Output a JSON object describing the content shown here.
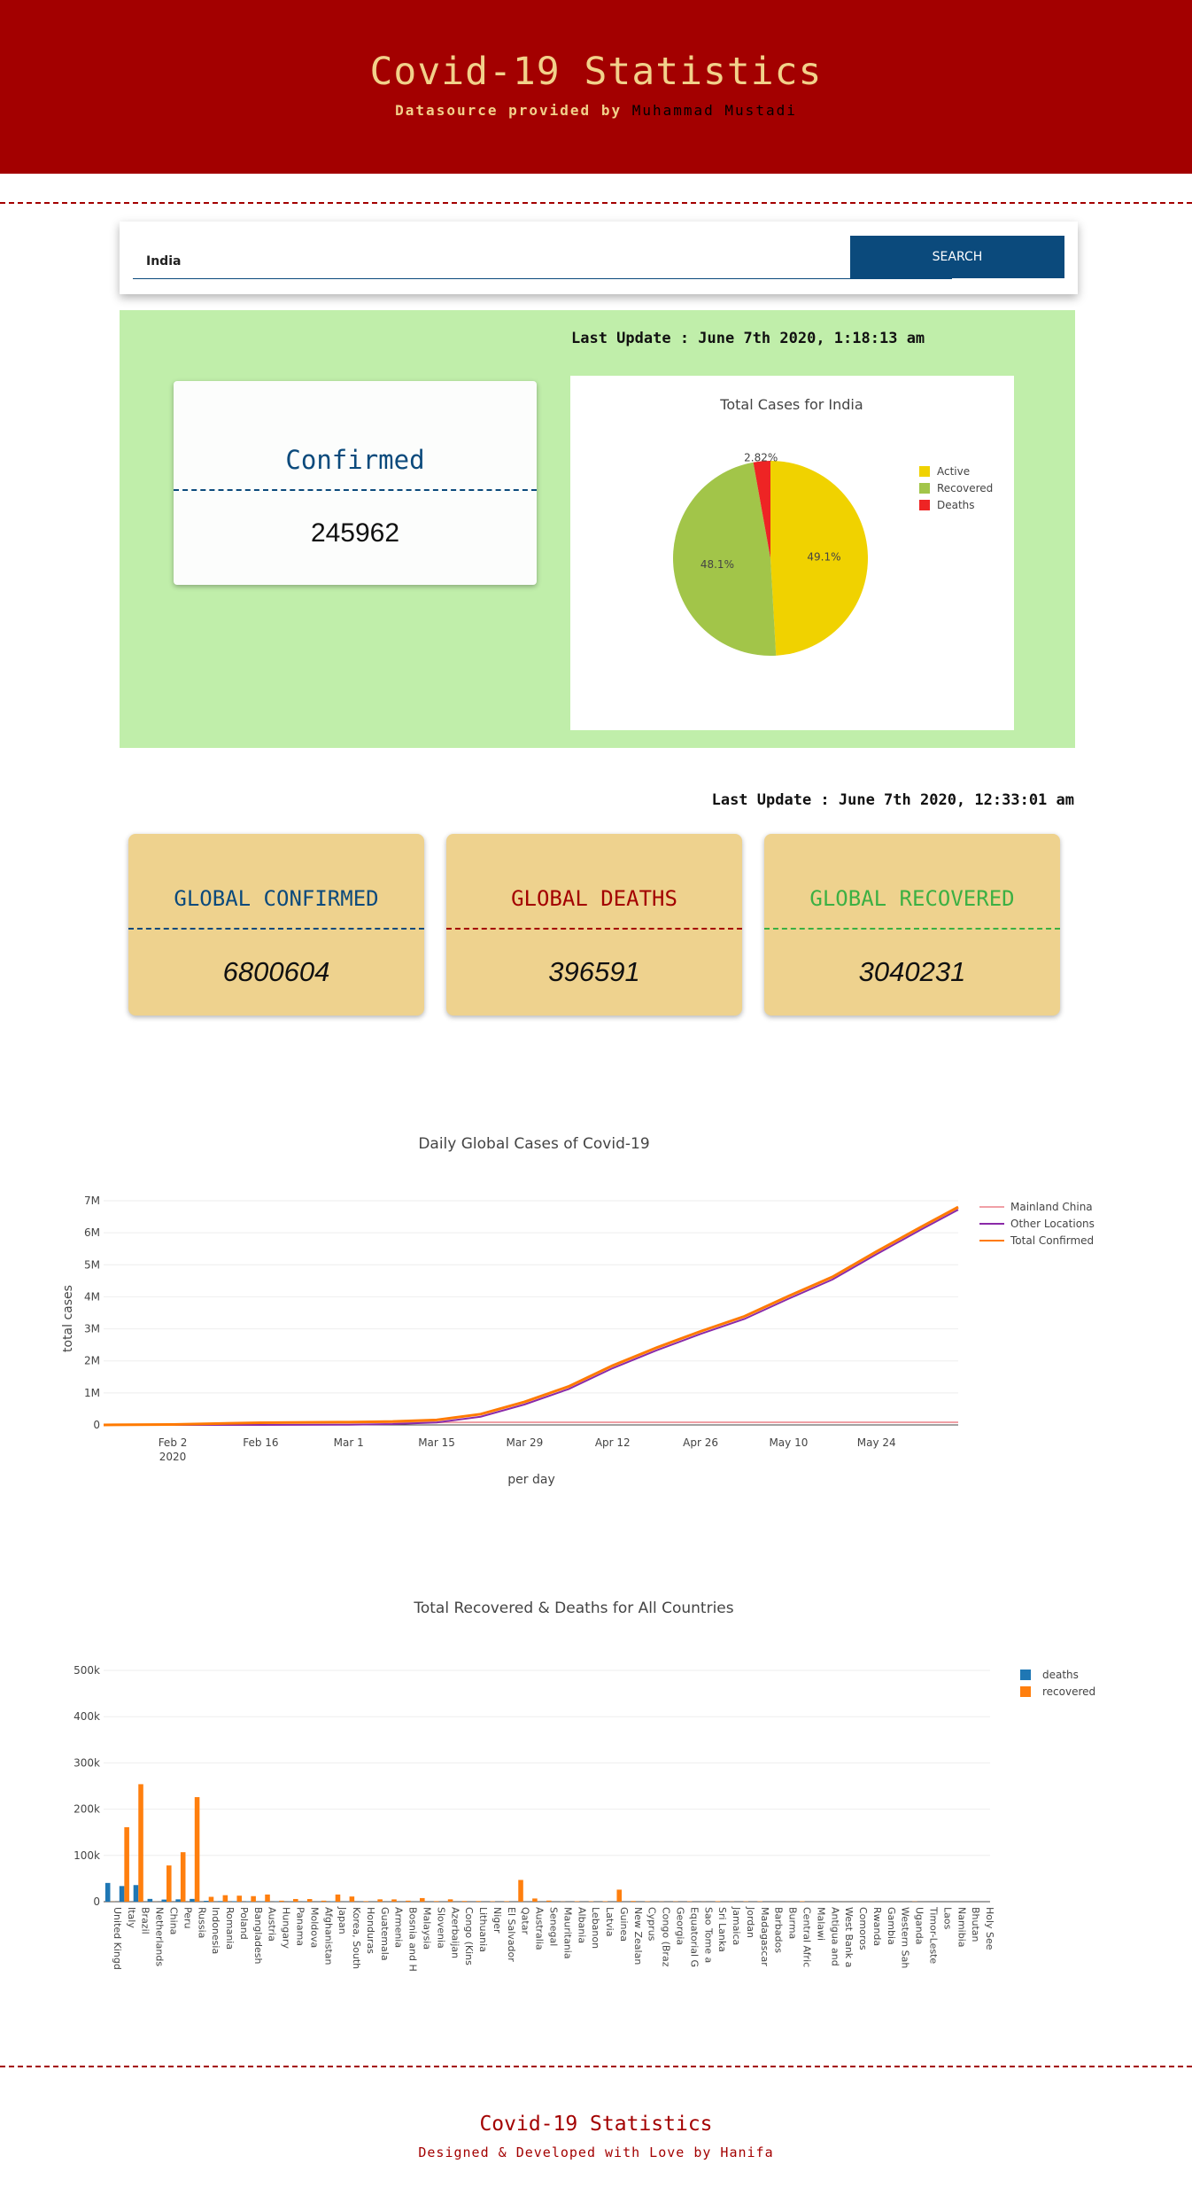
{
  "header": {
    "title": "Covid-19 Statistics",
    "subtitle_prefix": "Datasource provided by ",
    "subtitle_author": "Muhammad Mustadi"
  },
  "search": {
    "value": "India",
    "button_label": "SEARCH"
  },
  "country": {
    "last_update": "Last Update : June 7th 2020, 1:18:13 am",
    "confirmed_label": "Confirmed",
    "confirmed_value": "245962"
  },
  "global": {
    "last_update": "Last Update : June 7th 2020, 12:33:01 am",
    "cards": [
      {
        "label": "GLOBAL CONFIRMED",
        "value": "6800604",
        "color": "#0b4a7c"
      },
      {
        "label": "GLOBAL DEATHS",
        "value": "396591",
        "color": "#a30000"
      },
      {
        "label": "GLOBAL RECOVERED",
        "value": "3040231",
        "color": "#3cb043"
      }
    ]
  },
  "footer": {
    "title": "Covid-19 Statistics",
    "subtitle": "Designed & Developed with Love by Hanifa"
  },
  "chart_data": [
    {
      "type": "pie",
      "title": "Total Cases for India",
      "legend_position": "right",
      "labels": [
        "Active",
        "Recovered",
        "Deaths"
      ],
      "values": [
        49.1,
        48.1,
        2.82
      ],
      "value_labels": [
        "49.1%",
        "48.1%",
        "2.82%"
      ],
      "colors": [
        "#f0d200",
        "#a2c549",
        "#ee2424"
      ]
    },
    {
      "type": "line",
      "title": "Daily Global Cases of Covid-19",
      "xlabel": "per day",
      "ylabel": "total cases",
      "legend_position": "top-right",
      "x_ticks": [
        "Feb 2\n2020",
        "Feb 16",
        "Mar 1",
        "Mar 15",
        "Mar 29",
        "Apr 12",
        "Apr 26",
        "May 10",
        "May 24"
      ],
      "x_tick_dates": [
        "2020-02-02",
        "2020-02-16",
        "2020-03-01",
        "2020-03-15",
        "2020-03-29",
        "2020-04-12",
        "2020-04-26",
        "2020-05-10",
        "2020-05-24"
      ],
      "y_ticks": [
        "0",
        "1M",
        "2M",
        "3M",
        "4M",
        "5M",
        "6M",
        "7M"
      ],
      "ylim": [
        0,
        7000000
      ],
      "xlim": [
        "2020-01-22",
        "2020-06-06"
      ],
      "grid": true,
      "dates": [
        "2020-01-22",
        "2020-02-02",
        "2020-02-16",
        "2020-03-01",
        "2020-03-08",
        "2020-03-15",
        "2020-03-22",
        "2020-03-29",
        "2020-04-05",
        "2020-04-12",
        "2020-04-19",
        "2020-04-26",
        "2020-05-03",
        "2020-05-10",
        "2020-05-17",
        "2020-05-24",
        "2020-05-31",
        "2020-06-06"
      ],
      "series": [
        {
          "name": "Mainland China",
          "color": "#f0a0a6",
          "values": [
            548,
            14400,
            68500,
            79900,
            80700,
            81000,
            81400,
            81500,
            81700,
            82100,
            82700,
            82800,
            82900,
            82900,
            82900,
            83000,
            83000,
            83000
          ]
        },
        {
          "name": "Other Locations",
          "color": "#8a2aa8",
          "values": [
            7,
            200,
            800,
            8000,
            26000,
            76000,
            256000,
            640000,
            1120000,
            1770000,
            2330000,
            2840000,
            3310000,
            3940000,
            4540000,
            5330000,
            6090000,
            6720000
          ]
        },
        {
          "name": "Total Confirmed",
          "color": "#ff7a00",
          "values": [
            555,
            14600,
            69300,
            87900,
            106700,
            157000,
            337400,
            721500,
            1201700,
            1852100,
            2412700,
            2922800,
            3392900,
            4022900,
            4622900,
            5413000,
            6173000,
            6803000
          ]
        }
      ]
    },
    {
      "type": "bar",
      "title": "Total Recovered & Deaths for All Countries",
      "legend_position": "top-right",
      "y_ticks": [
        "0",
        "100k",
        "200k",
        "300k",
        "400k",
        "500k"
      ],
      "ylim": [
        0,
        500000
      ],
      "grid": true,
      "categories": [
        "United Kingd",
        "Italy",
        "Brazil",
        "Netherlands",
        "China",
        "Peru",
        "Russia",
        "Indonesia",
        "Romania",
        "Poland",
        "Bangladesh",
        "Austria",
        "Hungary",
        "Panama",
        "Moldova",
        "Afghanistan",
        "Japan",
        "Korea, South",
        "Honduras",
        "Guatemala",
        "Armenia",
        "Bosnia and H",
        "Malaysia",
        "Slovenia",
        "Azerbaijan",
        "Congo (Kins",
        "Lithuania",
        "Niger",
        "El Salvador",
        "Qatar",
        "Australia",
        "Senegal",
        "Mauritania",
        "Albania",
        "Lebanon",
        "Latvia",
        "Guinea",
        "New Zealan",
        "Cyprus",
        "Congo (Braz",
        "Georgia",
        "Equatorial G",
        "Sao Tome a",
        "Sri Lanka",
        "Jamaica",
        "Jordan",
        "Madagascar",
        "Barbados",
        "Burma",
        "Central Afric",
        "Malawi",
        "Antigua and",
        "West Bank a",
        "Comoros",
        "Rwanda",
        "Gambia",
        "Western Sah",
        "Uganda",
        "Timor-Leste",
        "Laos",
        "Namibia",
        "Bhutan",
        "Holy See"
      ],
      "series": [
        {
          "name": "deaths",
          "color": "#1f77b4",
          "values": [
            40500,
            33800,
            35900,
            6000,
            4600,
            5100,
            6000,
            1900,
            1300,
            1100,
            800,
            670,
            540,
            300,
            420,
            200,
            900,
            270,
            250,
            120,
            160,
            160,
            115,
            110,
            70,
            60,
            70,
            65,
            40,
            30,
            100,
            35,
            20,
            35,
            30,
            25,
            25,
            22,
            18,
            17,
            12,
            12,
            12,
            10,
            9,
            9,
            8,
            7,
            6,
            6,
            5,
            4,
            4,
            2,
            2,
            1,
            1,
            0,
            0,
            0,
            0,
            0,
            0
          ]
        },
        {
          "name": "recovered",
          "color": "#ff7f0e",
          "values": [
            300,
            161000,
            254000,
            250,
            78300,
            107000,
            226000,
            10500,
            14000,
            13000,
            12000,
            15500,
            2200,
            5800,
            5700,
            2200,
            15500,
            11200,
            1200,
            5100,
            5000,
            2200,
            7800,
            1300,
            5100,
            1500,
            1400,
            870,
            1100,
            47000,
            6900,
            2400,
            400,
            1000,
            800,
            1000,
            26000,
            1500,
            800,
            400,
            600,
            750,
            210,
            1000,
            400,
            660,
            740,
            50,
            200,
            900,
            150,
            20,
            100,
            120,
            300,
            25,
            6,
            500,
            24,
            19,
            16,
            30,
            2
          ]
        }
      ]
    }
  ]
}
